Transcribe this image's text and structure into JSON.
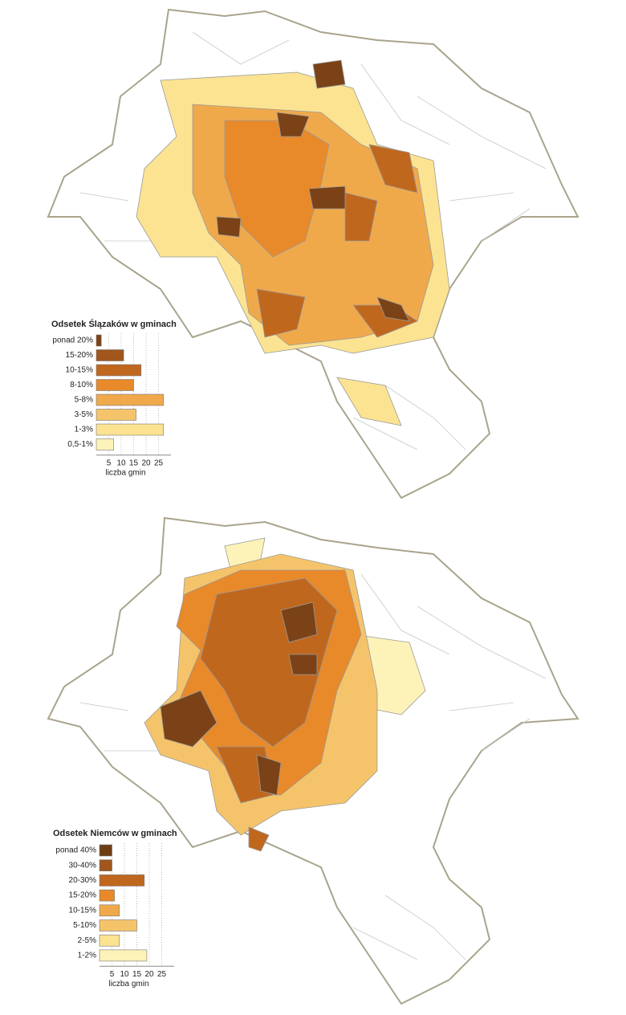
{
  "chart_data": [
    {
      "type": "hbar",
      "title": "Odsetek Ślązaków w gminach",
      "xlabel": "liczba gmin",
      "categories": [
        "ponad 20%",
        "15-20%",
        "10-15%",
        "8-10%",
        "5-8%",
        "3-5%",
        "1-3%",
        "0,5-1%"
      ],
      "values": [
        2,
        11,
        18,
        15,
        27,
        16,
        27,
        7
      ],
      "colors": [
        "#7a4216",
        "#a0561c",
        "#c0671e",
        "#e8892a",
        "#f0a94a",
        "#f5c46a",
        "#fbe391",
        "#fdf3b8"
      ],
      "xlim": [
        0,
        30
      ],
      "xticks": [
        5,
        10,
        15,
        20,
        25
      ],
      "grid": true
    },
    {
      "type": "hbar",
      "title": "Odsetek Niemców w gminach",
      "xlabel": "liczba gmin",
      "categories": [
        "ponad 40%",
        "30-40%",
        "20-30%",
        "15-20%",
        "10-15%",
        "5-10%",
        "2-5%",
        "1-2%"
      ],
      "values": [
        5,
        5,
        18,
        6,
        8,
        15,
        8,
        19
      ],
      "colors": [
        "#6e3d14",
        "#a0561c",
        "#c0671e",
        "#e8892a",
        "#f0a94a",
        "#f5c46a",
        "#fbe391",
        "#fdf3b8"
      ],
      "xlim": [
        0,
        30
      ],
      "xticks": [
        5,
        10,
        15,
        20,
        25
      ],
      "grid": true
    }
  ]
}
